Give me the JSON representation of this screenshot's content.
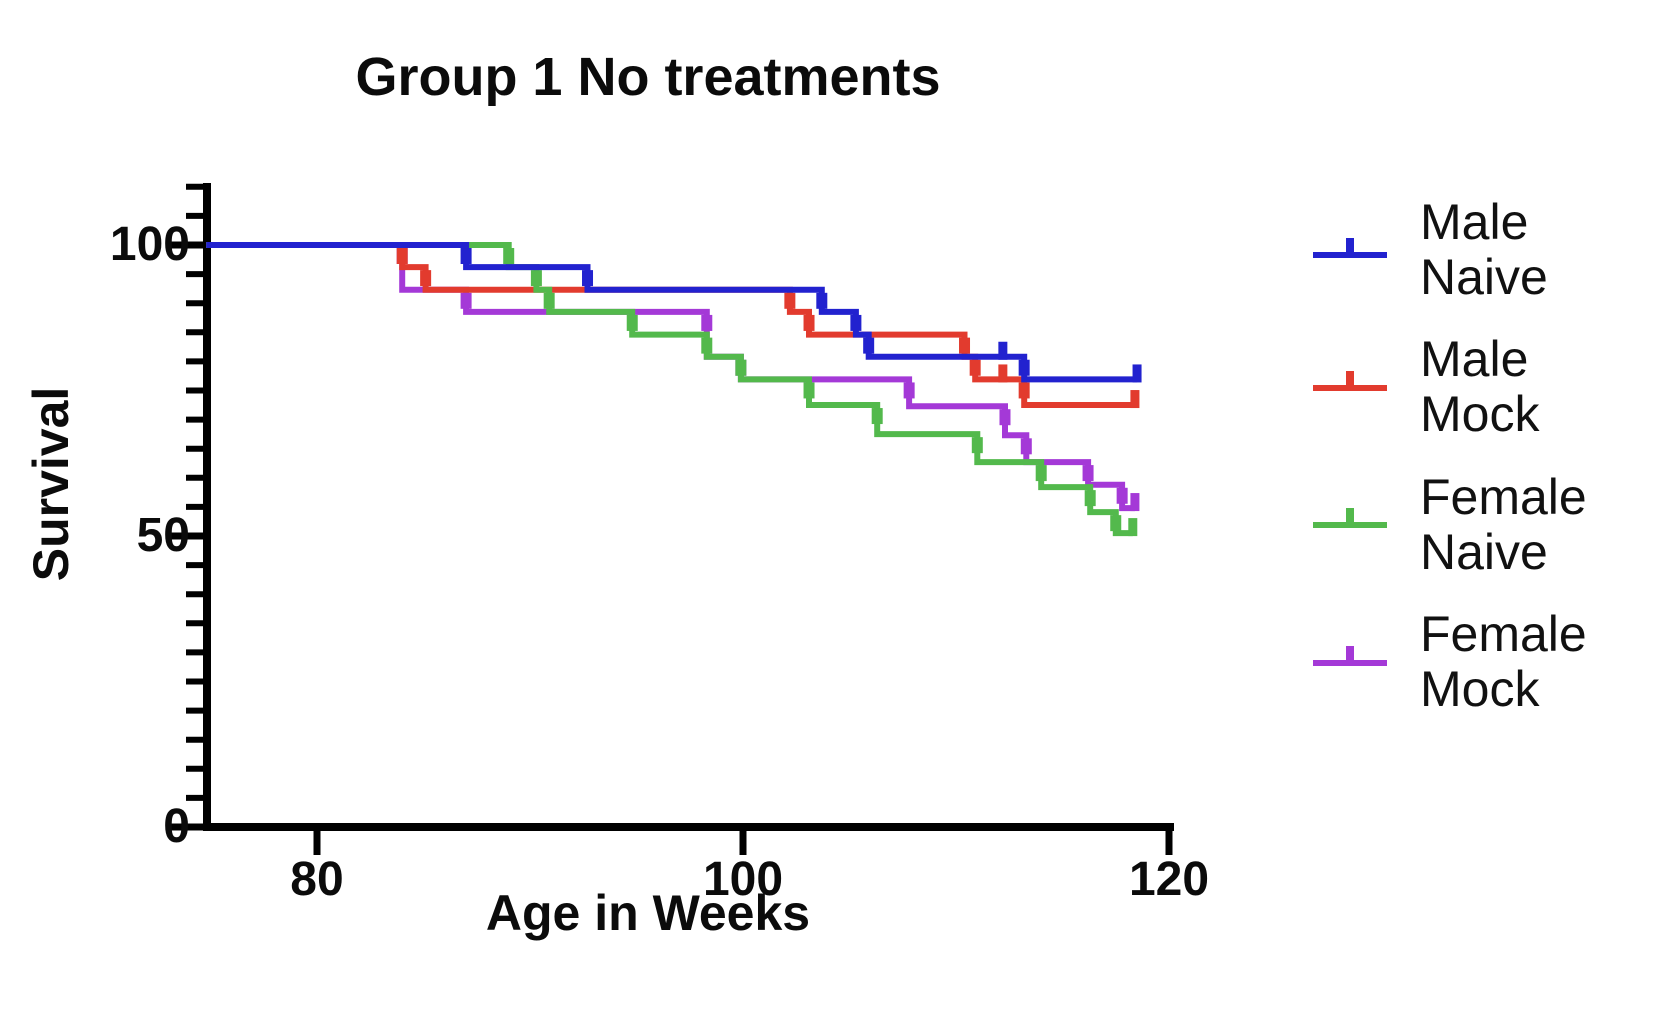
{
  "title": "Group 1 No treatments",
  "axes": {
    "x_label": "Age in Weeks",
    "y_label": "Survival",
    "x_tick_labels": [
      "80",
      "100",
      "120"
    ],
    "y_tick_labels": [
      "100",
      "50",
      "0"
    ]
  },
  "legend": {
    "entries": [
      {
        "line1": "Male",
        "line2": "Naive",
        "color": "#2222cf"
      },
      {
        "line1": "Male",
        "line2": "Mock",
        "color": "#e23b2e"
      },
      {
        "line1": "Female",
        "line2": "Naive",
        "color": "#53b94c"
      },
      {
        "line1": "Female",
        "line2": "Mock",
        "color": "#a439d7"
      }
    ]
  },
  "chart_data": {
    "type": "line",
    "variant": "kaplan-meier-step",
    "title": "Group 1 No treatments",
    "xlabel": "Age in Weeks",
    "ylabel": "Survival",
    "x_axis": {
      "ticks": [
        80,
        100,
        120
      ],
      "range": [
        74.8,
        121.5
      ],
      "minor_ticks": false
    },
    "y_axis": {
      "ticks": [
        0,
        50,
        100
      ],
      "minor_tick_step": 5,
      "range": [
        0,
        110
      ]
    },
    "grid": false,
    "legend_position": "right",
    "series": [
      {
        "name": "Male Naive",
        "color": "#2222cf",
        "z": 4,
        "points": [
          [
            74.8,
            100
          ],
          [
            87,
            100
          ],
          [
            87,
            96.2
          ],
          [
            92.7,
            96.2
          ],
          [
            92.7,
            92.3
          ],
          [
            103.7,
            92.3
          ],
          [
            103.7,
            88.5
          ],
          [
            105.3,
            88.5
          ],
          [
            105.3,
            84.6
          ],
          [
            105.9,
            84.6
          ],
          [
            105.9,
            80.8
          ],
          [
            113.2,
            80.8
          ],
          [
            113.2,
            76.9
          ],
          [
            118.5,
            76.9
          ]
        ],
        "censor_ticks": [
          [
            112.2,
            80.8
          ],
          [
            118.5,
            76.9
          ]
        ]
      },
      {
        "name": "Male Mock",
        "color": "#e23b2e",
        "z": 2,
        "points": [
          [
            74.8,
            100
          ],
          [
            84,
            100
          ],
          [
            84,
            96.2
          ],
          [
            85.1,
            96.2
          ],
          [
            85.1,
            92.3
          ],
          [
            102.2,
            92.3
          ],
          [
            102.2,
            88.5
          ],
          [
            103.1,
            88.5
          ],
          [
            103.1,
            84.6
          ],
          [
            110.4,
            84.6
          ],
          [
            110.4,
            80.8
          ],
          [
            110.9,
            80.8
          ],
          [
            110.9,
            76.9
          ],
          [
            113.2,
            76.9
          ],
          [
            113.2,
            72.5
          ],
          [
            118.4,
            72.5
          ]
        ],
        "censor_ticks": [
          [
            112.2,
            76.9
          ],
          [
            118.4,
            72.5
          ]
        ]
      },
      {
        "name": "Female Naive",
        "color": "#53b94c",
        "z": 3,
        "points": [
          [
            74.8,
            100
          ],
          [
            89,
            100
          ],
          [
            89,
            96.2
          ],
          [
            90.3,
            96.2
          ],
          [
            90.3,
            92.3
          ],
          [
            90.9,
            92.3
          ],
          [
            90.9,
            88.5
          ],
          [
            94.8,
            88.5
          ],
          [
            94.8,
            84.6
          ],
          [
            98.3,
            84.6
          ],
          [
            98.3,
            80.8
          ],
          [
            99.9,
            80.8
          ],
          [
            99.9,
            76.9
          ],
          [
            103.1,
            76.9
          ],
          [
            103.1,
            72.5
          ],
          [
            106.3,
            72.5
          ],
          [
            106.3,
            67.5
          ],
          [
            111,
            67.5
          ],
          [
            111,
            62.7
          ],
          [
            114,
            62.7
          ],
          [
            114,
            58.4
          ],
          [
            116.3,
            58.4
          ],
          [
            116.3,
            54.1
          ],
          [
            117.5,
            54.1
          ],
          [
            117.5,
            50.5
          ],
          [
            118.3,
            50.5
          ]
        ],
        "censor_ticks": [
          [
            118.3,
            50.5
          ]
        ]
      },
      {
        "name": "Female Mock",
        "color": "#a439d7",
        "z": 1,
        "points": [
          [
            74.8,
            100
          ],
          [
            84,
            100
          ],
          [
            84,
            92.3
          ],
          [
            87,
            92.3
          ],
          [
            87,
            88.5
          ],
          [
            98.3,
            88.5
          ],
          [
            98.3,
            80.8
          ],
          [
            99.9,
            80.8
          ],
          [
            99.9,
            76.9
          ],
          [
            107.8,
            76.9
          ],
          [
            107.8,
            72.3
          ],
          [
            112.3,
            72.3
          ],
          [
            112.3,
            67.3
          ],
          [
            113.3,
            67.3
          ],
          [
            113.3,
            62.7
          ],
          [
            116.2,
            62.7
          ],
          [
            116.2,
            58.8
          ],
          [
            117.8,
            58.8
          ],
          [
            117.8,
            54.8
          ],
          [
            118.4,
            54.8
          ]
        ],
        "censor_ticks": [
          [
            118.4,
            54.8
          ]
        ]
      }
    ]
  }
}
